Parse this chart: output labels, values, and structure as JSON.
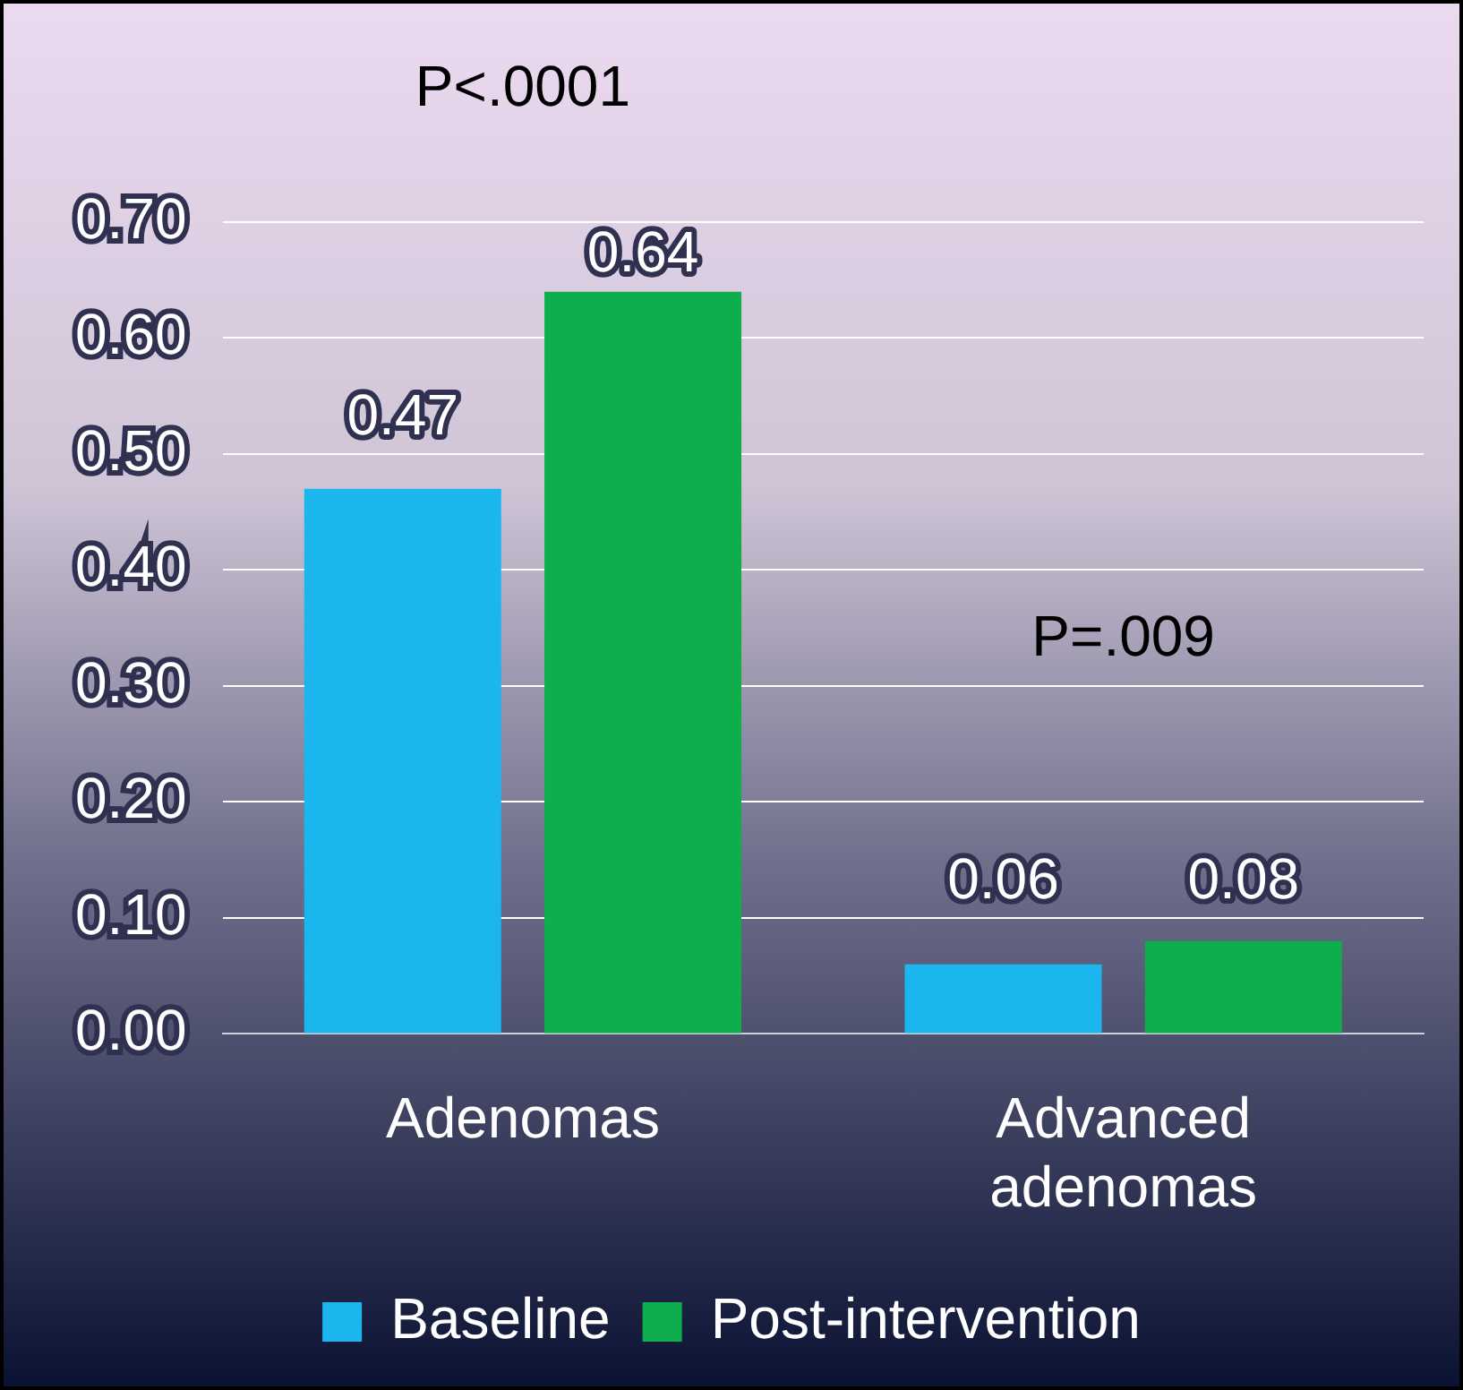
{
  "chart_data": {
    "type": "bar",
    "categories": [
      "Adenomas",
      "Advanced adenomas"
    ],
    "series": [
      {
        "name": "Baseline",
        "color": "#1cb6ee",
        "values": [
          0.47,
          0.06
        ]
      },
      {
        "name": "Post-intervention",
        "color": "#0fae4c",
        "values": [
          0.64,
          0.08
        ]
      }
    ],
    "ylim": [
      0,
      0.7
    ],
    "yticks": [
      {
        "value": 0,
        "label": "0.00"
      },
      {
        "value": 0.1,
        "label": "0.10"
      },
      {
        "value": 0.2,
        "label": "0.20"
      },
      {
        "value": 0.3,
        "label": "0.30"
      },
      {
        "value": 0.4,
        "label": "0.40"
      },
      {
        "value": 0.5,
        "label": "0.50"
      },
      {
        "value": 0.6,
        "label": "0.60"
      },
      {
        "value": 0.7,
        "label": "0.70"
      }
    ],
    "grid": "y",
    "legend": "bottom",
    "data_labels": true,
    "annotations": [
      "P<.0001",
      "P=.009"
    ]
  }
}
